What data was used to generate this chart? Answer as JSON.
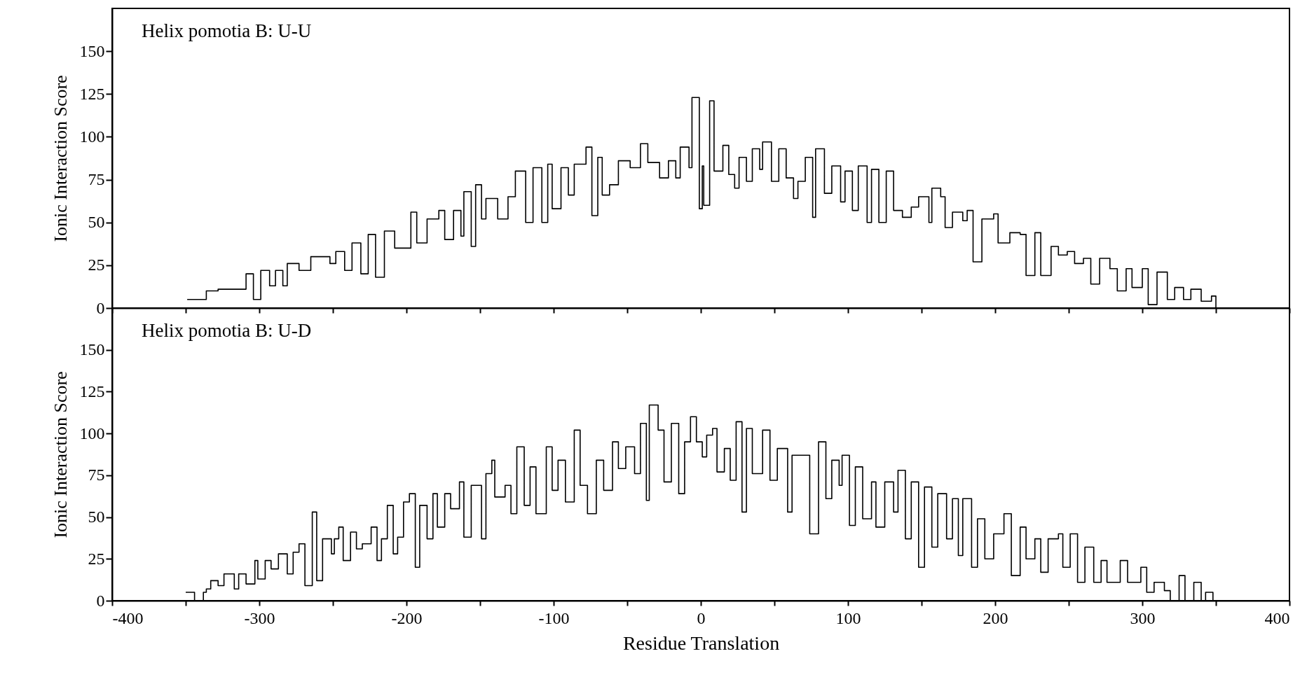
{
  "chart_data": [
    {
      "type": "step",
      "annotations": [
        "Helix pomotia B: U-U"
      ],
      "ylabel": "Ionic Interaction Score",
      "color": "#000000",
      "xlim": [
        -400,
        400
      ],
      "ylim": [
        0,
        175
      ],
      "yticks": [
        0,
        25,
        50,
        75,
        100,
        125,
        150
      ],
      "xticks": [
        -400,
        {
          "value": -350,
          "label": null
        },
        -300,
        {
          "value": -250,
          "label": null
        },
        -200,
        {
          "value": -150,
          "label": null
        },
        -100,
        {
          "value": -50,
          "label": null
        },
        0,
        {
          "value": 50,
          "label": null
        },
        100,
        {
          "value": 150,
          "label": null
        },
        200,
        {
          "value": 250,
          "label": null
        },
        300,
        {
          "value": 350,
          "label": null
        },
        400
      ],
      "tick_labels": "y",
      "grid": false,
      "x": [
        -349,
        -336,
        -328,
        -317,
        -309,
        -304,
        -299,
        -293,
        -289,
        -284,
        -281,
        -273,
        -265,
        -260,
        -252,
        -248,
        -242,
        -237,
        -231,
        -226,
        -221,
        -215,
        -208,
        -197,
        -193,
        -186,
        -178,
        -174,
        -168,
        -163,
        -161,
        -156,
        -153,
        -149,
        -146,
        -138,
        -131,
        -126,
        -119,
        -114,
        -108,
        -104,
        -101,
        -95,
        -90,
        -86,
        -78,
        -74,
        -70,
        -67,
        -62,
        -56,
        -48,
        -41,
        -36,
        -28,
        -22,
        -17,
        -14,
        -8,
        -6,
        -1,
        1,
        2,
        6,
        9,
        15,
        19,
        23,
        26,
        31,
        35,
        40,
        42,
        48,
        53,
        58,
        63,
        66,
        71,
        76,
        78,
        84,
        89,
        95,
        98,
        103,
        107,
        113,
        116,
        121,
        126,
        131,
        137,
        143,
        148,
        155,
        157,
        163,
        166,
        171,
        178,
        181,
        185,
        191,
        199,
        202,
        210,
        217,
        221,
        227,
        231,
        238,
        243,
        249,
        254,
        260,
        265,
        271,
        278,
        283,
        289,
        293,
        300,
        304,
        310,
        317,
        322,
        328,
        333,
        340,
        347,
        350
      ],
      "values": [
        5,
        10,
        11,
        11,
        20,
        5,
        22,
        13,
        22,
        13,
        26,
        22,
        30,
        30,
        26,
        33,
        22,
        38,
        20,
        43,
        18,
        45,
        35,
        56,
        38,
        52,
        57,
        40,
        57,
        42,
        68,
        36,
        72,
        52,
        64,
        52,
        65,
        80,
        50,
        82,
        50,
        84,
        58,
        82,
        66,
        84,
        94,
        54,
        88,
        66,
        72,
        86,
        82,
        96,
        85,
        76,
        86,
        76,
        94,
        82,
        123,
        58,
        83,
        60,
        121,
        80,
        95,
        78,
        70,
        88,
        74,
        93,
        81,
        97,
        74,
        93,
        76,
        64,
        74,
        88,
        53,
        93,
        67,
        83,
        62,
        80,
        57,
        83,
        50,
        81,
        50,
        80,
        57,
        53,
        59,
        65,
        50,
        70,
        65,
        47,
        56,
        51,
        57,
        27,
        52,
        55,
        38,
        44,
        43,
        19,
        44,
        19,
        36,
        31,
        33,
        26,
        29,
        14,
        29,
        23,
        10,
        23,
        12,
        23,
        2,
        21,
        5,
        12,
        5,
        11,
        4,
        7,
        0
      ]
    },
    {
      "type": "step",
      "annotations": [
        "Helix pomotia B: U-D"
      ],
      "xlabel": "Residue Translation",
      "ylabel": "Ionic Interaction Score",
      "color": "#000000",
      "xlim": [
        -400,
        400
      ],
      "ylim": [
        0,
        175
      ],
      "yticks": [
        0,
        25,
        50,
        75,
        100,
        125,
        150
      ],
      "xticks": [
        -400,
        {
          "value": -350,
          "label": null
        },
        -300,
        {
          "value": -250,
          "label": null
        },
        -200,
        {
          "value": -150,
          "label": null
        },
        -100,
        {
          "value": -50,
          "label": null
        },
        0,
        {
          "value": 50,
          "label": null
        },
        100,
        {
          "value": 150,
          "label": null
        },
        200,
        {
          "value": 250,
          "label": null
        },
        300,
        {
          "value": 350,
          "label": null
        },
        400
      ],
      "grid": false,
      "x": [
        -350,
        -344,
        -338,
        -336,
        -333,
        -328,
        -324,
        -317,
        -314,
        -309,
        -303,
        -301,
        -296,
        -292,
        -287,
        -281,
        -277,
        -273,
        -269,
        -264,
        -261,
        -257,
        -251,
        -249,
        -246,
        -243,
        -238,
        -234,
        -230,
        -224,
        -220,
        -217,
        -213,
        -209,
        -206,
        -202,
        -198,
        -194,
        -191,
        -186,
        -182,
        -179,
        -174,
        -170,
        -164,
        -161,
        -156,
        -149,
        -146,
        -142,
        -140,
        -133,
        -129,
        -125,
        -120,
        -116,
        -112,
        -105,
        -101,
        -97,
        -92,
        -86,
        -82,
        -77,
        -71,
        -66,
        -60,
        -56,
        -51,
        -45,
        -41,
        -37,
        -35,
        -29,
        -25,
        -20,
        -15,
        -11,
        -7,
        -3,
        1,
        4,
        8,
        11,
        16,
        20,
        24,
        28,
        31,
        35,
        42,
        47,
        52,
        59,
        62,
        69,
        74,
        80,
        85,
        89,
        94,
        96,
        101,
        105,
        110,
        116,
        119,
        125,
        131,
        134,
        139,
        143,
        148,
        152,
        157,
        161,
        167,
        171,
        175,
        178,
        184,
        188,
        193,
        199,
        206,
        211,
        217,
        221,
        227,
        231,
        236,
        243,
        246,
        251,
        256,
        261,
        267,
        272,
        276,
        285,
        290,
        299,
        303,
        308,
        315,
        319,
        325,
        329,
        335,
        340,
        343,
        348
      ],
      "values": [
        5,
        0,
        5,
        7,
        12,
        9,
        16,
        7,
        16,
        10,
        24,
        13,
        24,
        19,
        28,
        16,
        29,
        34,
        9,
        53,
        12,
        37,
        28,
        37,
        44,
        24,
        41,
        31,
        34,
        44,
        24,
        37,
        57,
        28,
        38,
        59,
        64,
        20,
        57,
        37,
        64,
        44,
        64,
        55,
        71,
        38,
        69,
        37,
        76,
        84,
        62,
        69,
        52,
        92,
        57,
        80,
        52,
        92,
        66,
        84,
        59,
        102,
        69,
        52,
        84,
        66,
        95,
        79,
        92,
        76,
        106,
        60,
        117,
        102,
        71,
        106,
        64,
        95,
        110,
        95,
        86,
        99,
        103,
        77,
        91,
        72,
        107,
        53,
        103,
        76,
        102,
        72,
        91,
        53,
        87,
        87,
        40,
        95,
        61,
        84,
        69,
        87,
        45,
        80,
        49,
        71,
        44,
        71,
        53,
        78,
        37,
        71,
        20,
        68,
        32,
        64,
        37,
        61,
        27,
        61,
        20,
        49,
        25,
        40,
        52,
        15,
        44,
        25,
        37,
        17,
        37,
        40,
        20,
        40,
        11,
        32,
        11,
        24,
        11,
        24,
        11,
        20,
        5,
        11,
        6,
        0,
        15,
        0,
        11,
        0,
        5,
        0
      ]
    }
  ]
}
